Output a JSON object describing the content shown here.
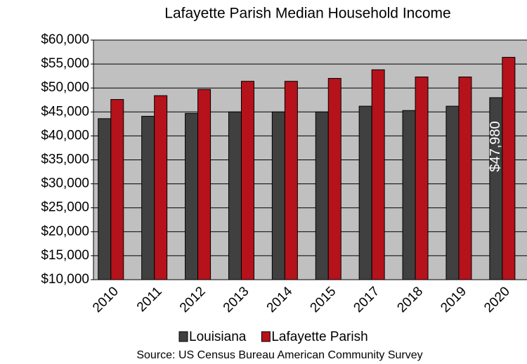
{
  "chart_data": {
    "type": "bar",
    "title": "Lafayette Parish Median Household Income",
    "source": "Source:  US Census Bureau American Community Survey",
    "categories": [
      "2010",
      "2011",
      "2012",
      "2013",
      "2014",
      "2015",
      "2017",
      "2018",
      "2019",
      "2020"
    ],
    "series": [
      {
        "name": "Louisiana",
        "color": "#404040",
        "values": [
          43600,
          44100,
          44700,
          45000,
          45000,
          45000,
          46200,
          45300,
          46200,
          47980
        ],
        "value_labels": [
          null,
          null,
          null,
          null,
          null,
          null,
          null,
          null,
          null,
          "$47,980"
        ]
      },
      {
        "name": "Lafayette Parish",
        "color": "#b5121b",
        "values": [
          47600,
          48400,
          49700,
          51400,
          51400,
          52000,
          53800,
          52300,
          52300,
          56400
        ]
      }
    ],
    "ylim": [
      10000,
      60000
    ],
    "yticks": [
      {
        "value": 10000,
        "label": "$10,000"
      },
      {
        "value": 15000,
        "label": "$15,000"
      },
      {
        "value": 20000,
        "label": "$20,000"
      },
      {
        "value": 25000,
        "label": "$25,000"
      },
      {
        "value": 30000,
        "label": "$30,000"
      },
      {
        "value": 35000,
        "label": "$35,000"
      },
      {
        "value": 40000,
        "label": "$40,000"
      },
      {
        "value": 45000,
        "label": "$45,000"
      },
      {
        "value": 50000,
        "label": "$50,000"
      },
      {
        "value": 55000,
        "label": "$55,000"
      },
      {
        "value": 60000,
        "label": "$60,000"
      }
    ],
    "grid": true,
    "legend": "bottom"
  }
}
